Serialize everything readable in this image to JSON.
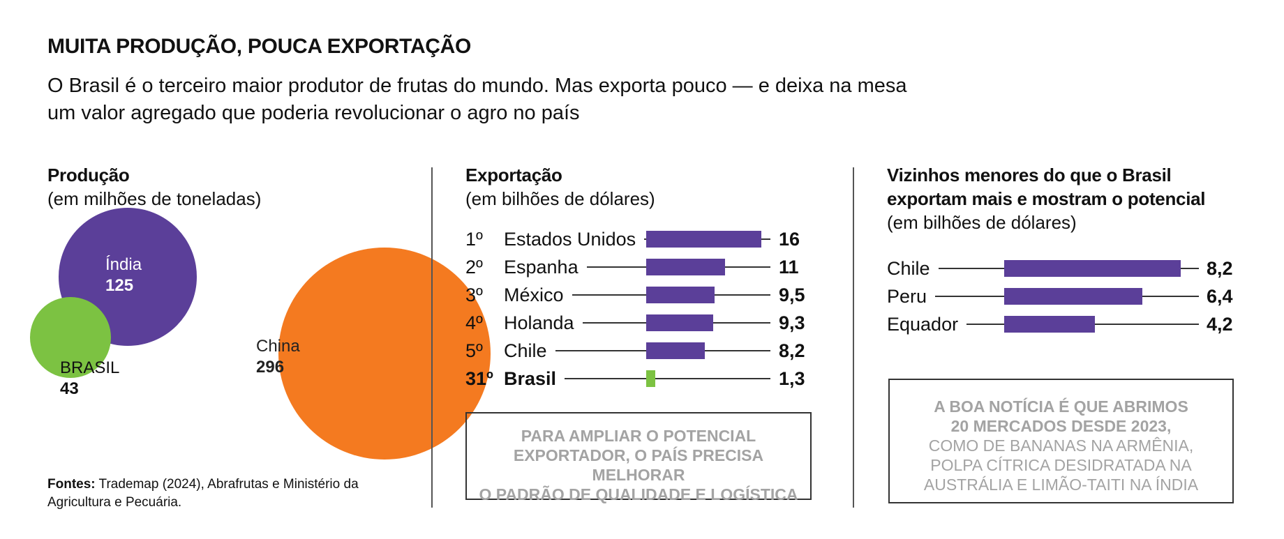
{
  "header": {
    "title": "MUITA PRODUÇÃO, POUCA EXPORTAÇÃO",
    "subtitle_line1": "O Brasil é o terceiro maior produtor de frutas do mundo. Mas exporta pouco — e deixa na mesa",
    "subtitle_line2": "um valor agregado que poderia revolucionar o agro no país"
  },
  "production": {
    "title": "Produção",
    "subtitle": "(em milhões de toneladas)"
  },
  "exports": {
    "title": "Exportação",
    "subtitle": "(em bilhões de dólares)",
    "note_line1": "PARA AMPLIAR O POTENCIAL",
    "note_line2_a": "EXPORTADOR, O ",
    "note_line2_b": "PAÍS PRECISA MELHORAR",
    "note_line3": "O PADRÃO DE QUALIDADE E LOGÍSTICA"
  },
  "neighbors": {
    "title_line1": "Vizinhos menores do que o Brasil",
    "title_line2": "exportam mais e mostram o potencial",
    "subtitle": "(em bilhões de dólares)",
    "note_line1": "A BOA NOTÍCIA É QUE ABRIMOS",
    "note_line2": "20 MERCADOS DESDE 2023,",
    "note_line3": "COMO DE BANANAS NA ARMÊNIA,",
    "note_line4": "POLPA CÍTRICA DESIDRATADA NA",
    "note_line5": "AUSTRÁLIA E LIMÃO-TAITI NA ÍNDIA"
  },
  "sources": {
    "label": "Fontes:",
    "text": " Trademap (2024), Abrafrutas e Ministério da Agricultura e Pecuária."
  },
  "colors": {
    "china": "#f47a20",
    "india": "#5b3f99",
    "brasil": "#7cc242",
    "bar": "#5b3f99",
    "bar_highlight": "#7cc242"
  },
  "chart_data": [
    {
      "type": "bubble",
      "categories": [
        "China",
        "Índia",
        "BRASIL"
      ],
      "values": [
        296,
        125,
        43
      ],
      "value_labels": [
        "296",
        "125",
        "43"
      ]
    },
    {
      "type": "bar",
      "ranks": [
        "1º",
        "2º",
        "3º",
        "4º",
        "5º",
        "31º"
      ],
      "categories": [
        "Estados Unidos",
        "Espanha",
        "México",
        "Holanda",
        "Chile",
        "Brasil"
      ],
      "values": [
        16,
        11,
        9.5,
        9.3,
        8.2,
        1.3
      ],
      "value_labels": [
        "16",
        "11",
        "9,5",
        "9,3",
        "8,2",
        "1,3"
      ],
      "highlight": "Brasil"
    },
    {
      "type": "bar",
      "categories": [
        "Chile",
        "Peru",
        "Equador"
      ],
      "values": [
        8.2,
        6.4,
        4.2
      ],
      "value_labels": [
        "8,2",
        "6,4",
        "4,2"
      ]
    }
  ]
}
